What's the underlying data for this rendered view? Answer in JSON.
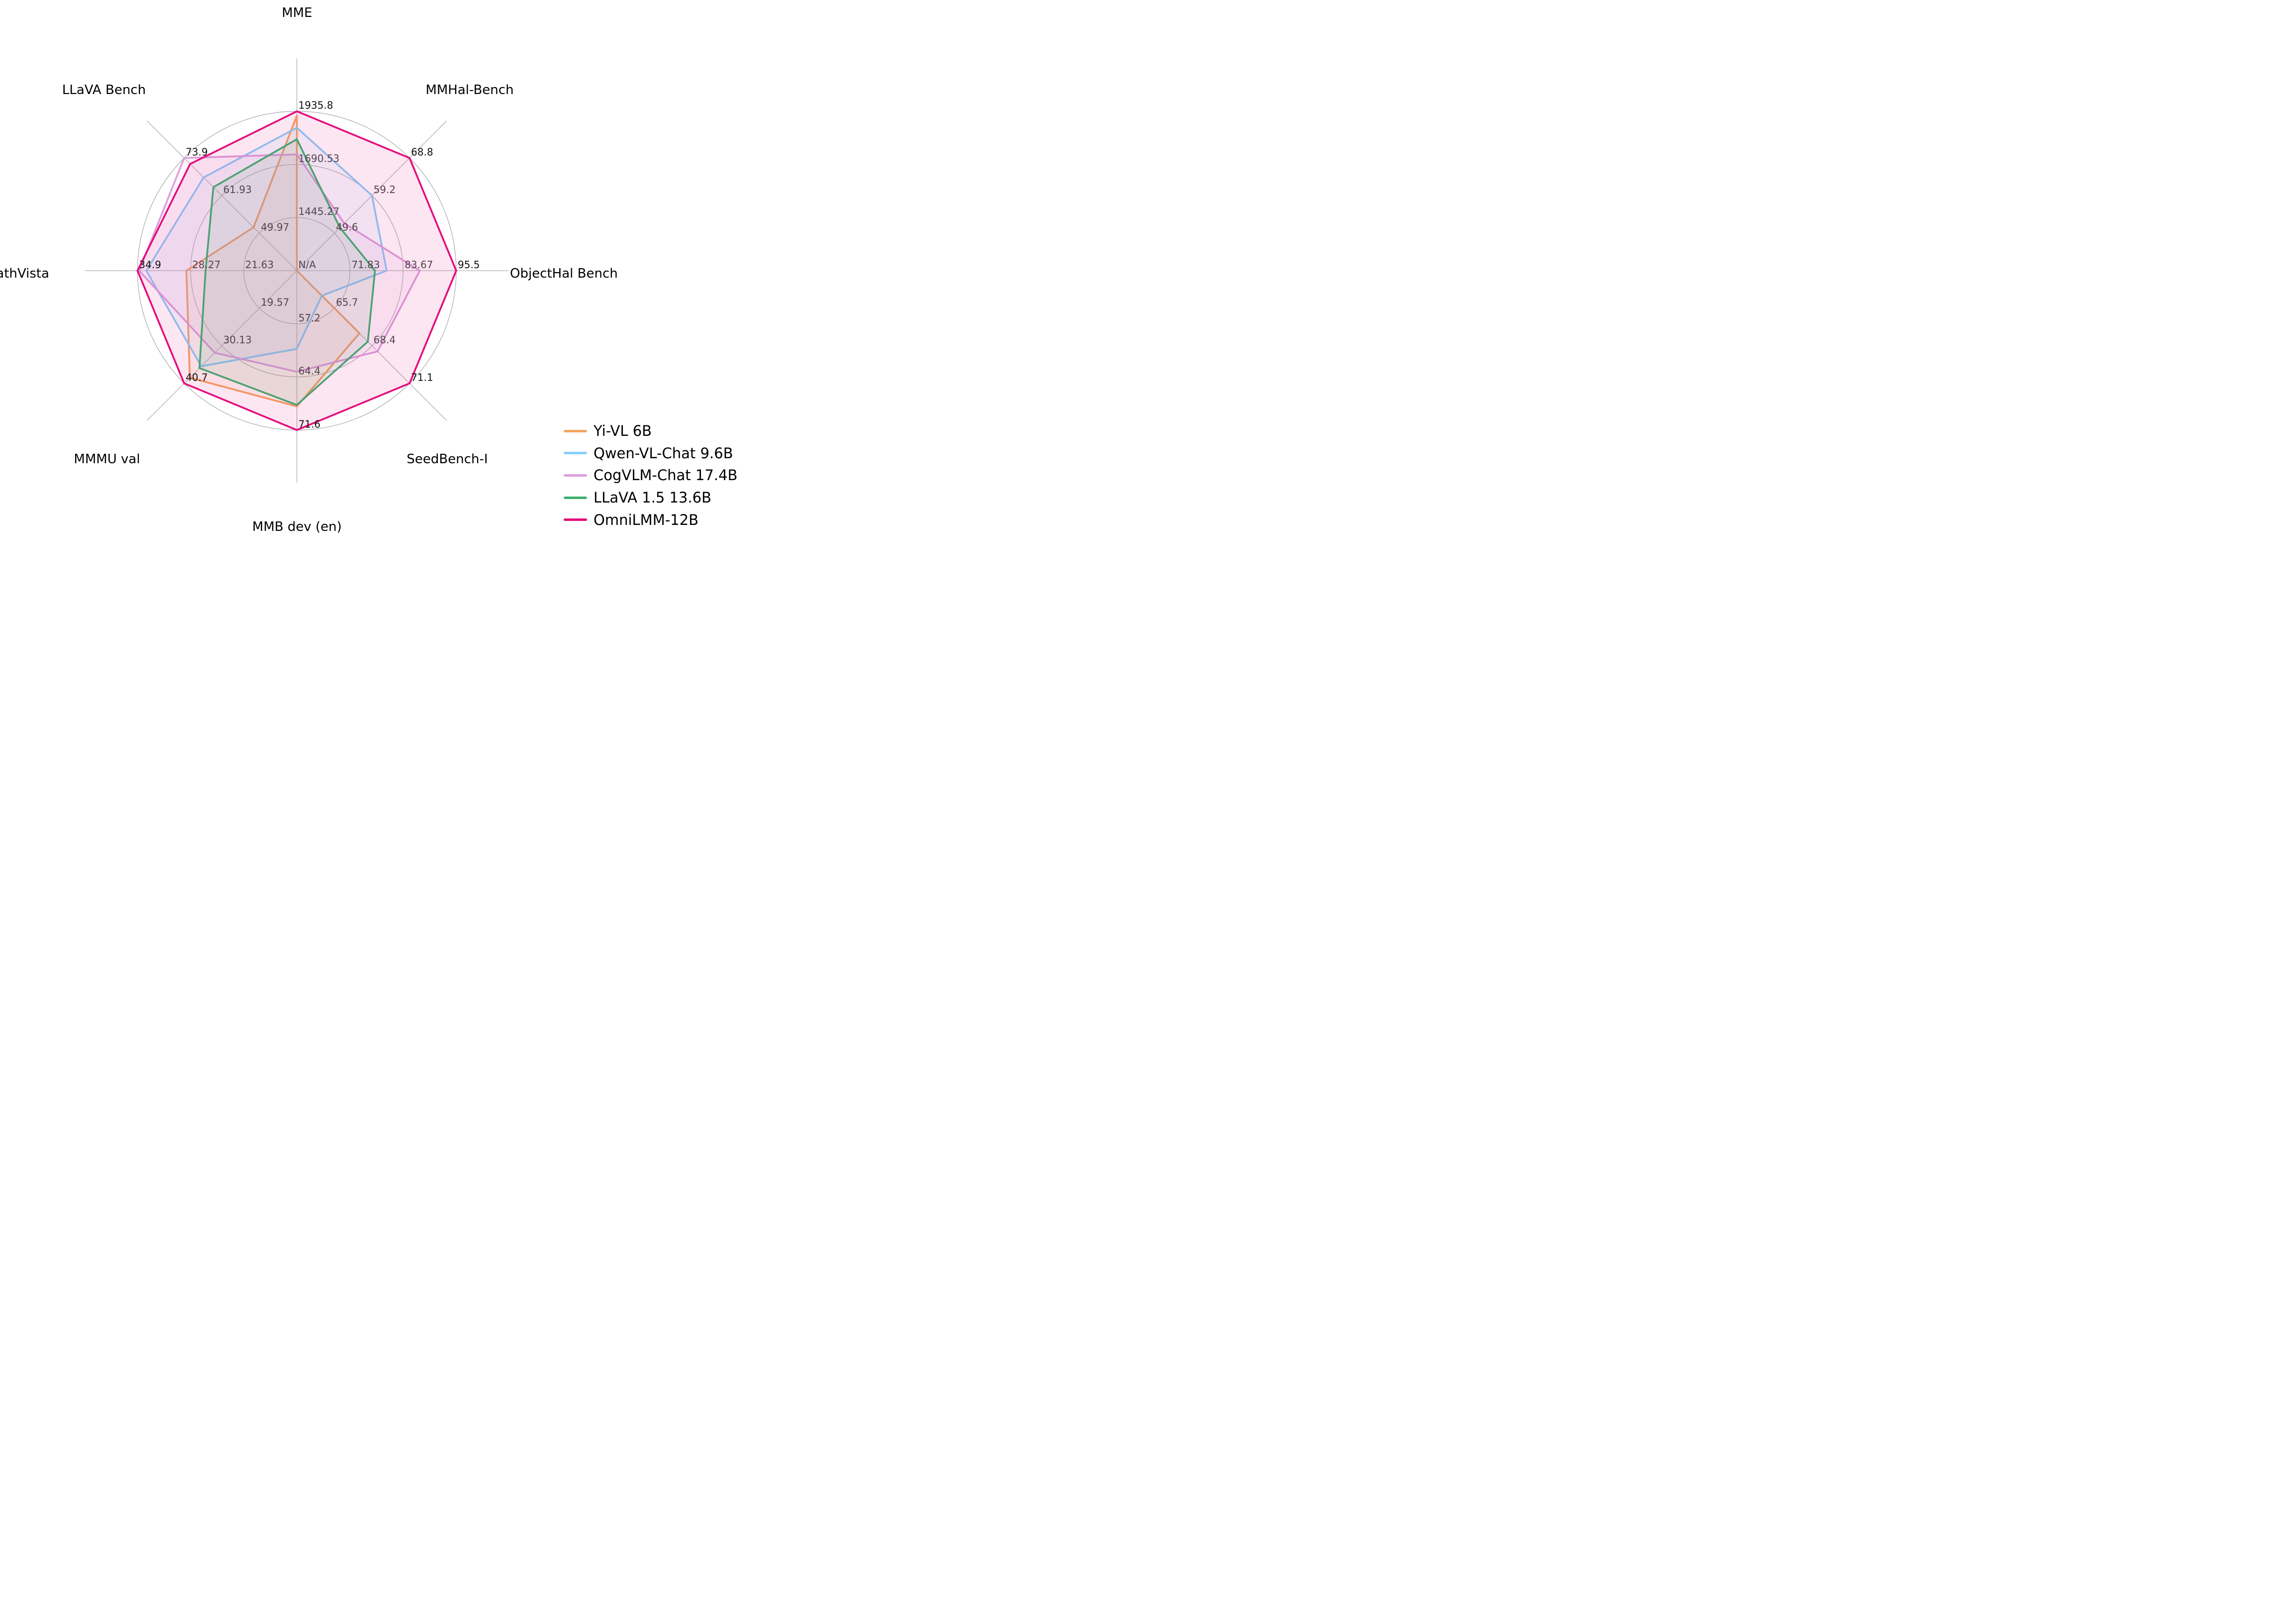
{
  "chart_data": {
    "type": "radar",
    "description": "Radar comparison of multimodal LLM benchmark scores; each axis has its own scale. Ring ticks at 1/3, 2/3 and 1.0 of radius; values not available (null) are plotted at the center, which is labeled N/A.",
    "grid": {
      "rings": 3,
      "spokes": 8,
      "color": "#AFAFAF",
      "legend_position": "lower right"
    },
    "na_display": "N/A",
    "axes": [
      {
        "label": "MME",
        "center_value": 1200.0,
        "max": 1935.8,
        "tick_labels": [
          "1445.27",
          "1690.53",
          "1935.8"
        ],
        "center_label": "N/A"
      },
      {
        "label": "MMHal-Bench",
        "center_value": 40.0,
        "max": 68.8,
        "tick_labels": [
          "49.6",
          "59.2",
          "68.8"
        ]
      },
      {
        "label": "ObjectHal Bench",
        "center_value": 60.0,
        "max": 95.5,
        "tick_labels": [
          "71.83",
          "83.67",
          "95.5"
        ]
      },
      {
        "label": "SeedBench-I",
        "center_value": 63.0,
        "max": 71.1,
        "tick_labels": [
          "65.7",
          "68.4",
          "71.1"
        ]
      },
      {
        "label": "MMB dev (en)",
        "center_value": 50.0,
        "max": 71.6,
        "tick_labels": [
          "57.2",
          "64.4",
          "71.6"
        ]
      },
      {
        "label": "MMMU val",
        "center_value": 9.0,
        "max": 40.7,
        "tick_labels": [
          "19.57",
          "30.13",
          "40.7"
        ]
      },
      {
        "label": "MathVista",
        "center_value": 15.0,
        "max": 34.9,
        "tick_labels": [
          "21.63",
          "28.27",
          "34.9"
        ]
      },
      {
        "label": "LLaVA Bench",
        "center_value": 38.0,
        "max": 73.9,
        "tick_labels": [
          "49.97",
          "61.93",
          "73.9"
        ]
      }
    ],
    "series": [
      {
        "name": "Yi-VL 6B",
        "color": "#F4A460",
        "values": [
          1915.1,
          null,
          null,
          67.5,
          68.4,
          39.1,
          28.8,
          51.8
        ]
      },
      {
        "name": "Qwen-VL-Chat 9.6B",
        "color": "#87CEFA",
        "values": [
          1860.0,
          59.2,
          80.0,
          64.8,
          60.6,
          35.9,
          33.8,
          67.7
        ]
      },
      {
        "name": "CogVLM-Chat 17.4B",
        "color": "#DDA0DD",
        "values": [
          1736.6,
          52.1,
          87.4,
          68.8,
          63.7,
          32.1,
          34.7,
          73.9
        ]
      },
      {
        "name": "LLaVA 1.5 13.6B",
        "color": "#3CB371",
        "values": [
          1807.0,
          51.0,
          77.4,
          68.1,
          68.2,
          36.4,
          26.4,
          64.6
        ]
      },
      {
        "name": "OmniLMM-12B",
        "color": "#E50C7D",
        "values": [
          1935.8,
          68.8,
          95.5,
          71.1,
          71.6,
          40.7,
          34.9,
          72.0
        ]
      }
    ]
  }
}
